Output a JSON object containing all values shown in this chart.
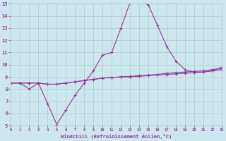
{
  "xlabel": "Windchill (Refroidissement éolien,°C)",
  "x_values": [
    0,
    1,
    2,
    3,
    4,
    5,
    6,
    7,
    8,
    9,
    10,
    11,
    12,
    13,
    14,
    15,
    16,
    17,
    18,
    19,
    20,
    21,
    22,
    23
  ],
  "line1_y": [
    8.5,
    8.5,
    8.5,
    8.5,
    8.4,
    8.4,
    8.5,
    8.6,
    8.7,
    8.8,
    8.9,
    8.95,
    9.0,
    9.05,
    9.1,
    9.15,
    9.2,
    9.3,
    9.35,
    9.4,
    9.45,
    9.5,
    9.6,
    9.7
  ],
  "line2_y": [
    8.5,
    8.5,
    8.0,
    8.5,
    6.8,
    5.1,
    6.3,
    7.5,
    8.5,
    9.5,
    10.8,
    11.0,
    13.0,
    15.1,
    15.2,
    14.9,
    13.2,
    11.5,
    10.3,
    9.6,
    9.4,
    9.4,
    9.5,
    9.8
  ],
  "line3_y": [
    8.5,
    8.5,
    8.5,
    8.5,
    8.4,
    8.4,
    8.5,
    8.6,
    8.7,
    8.8,
    8.9,
    8.95,
    9.0,
    9.0,
    9.05,
    9.1,
    9.15,
    9.2,
    9.25,
    9.3,
    9.35,
    9.4,
    9.5,
    9.6
  ],
  "ylim": [
    5,
    15
  ],
  "xlim": [
    0,
    23
  ],
  "yticks": [
    5,
    6,
    7,
    8,
    9,
    10,
    11,
    12,
    13,
    14,
    15
  ],
  "xticks": [
    0,
    1,
    2,
    3,
    4,
    5,
    6,
    7,
    8,
    9,
    10,
    11,
    12,
    13,
    14,
    15,
    16,
    17,
    18,
    19,
    20,
    21,
    22,
    23
  ],
  "line_color": "#993399",
  "bg_color": "#cce8ee",
  "grid_color": "#aacccc",
  "marker": "+",
  "marker_size": 3,
  "line_width": 0.8
}
